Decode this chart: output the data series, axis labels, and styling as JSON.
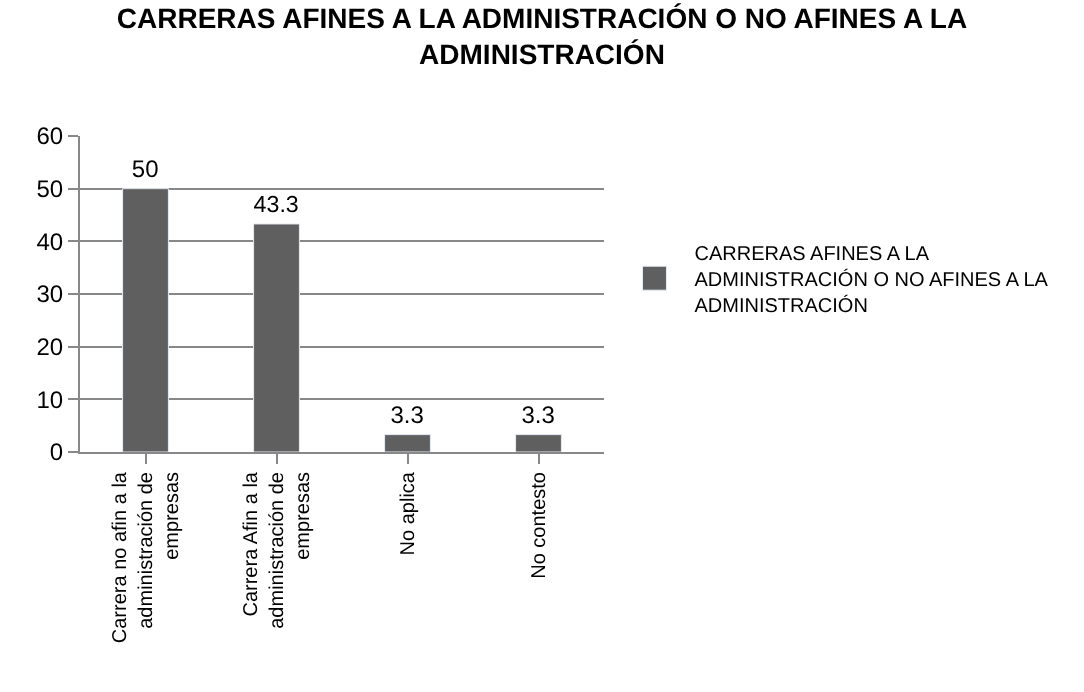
{
  "chart_data": {
    "type": "bar",
    "title": "CARRERAS AFINES A LA ADMINISTRACIÓN O NO AFINES A LA\nADMINISTRACIÓN",
    "categories": [
      "Carrera no afin a la\nadministración de\nempresas",
      "Carrera Afin a la\nadministración de\nempresas",
      "No aplica",
      "No contesto"
    ],
    "series": [
      {
        "name": "CARRERAS AFINES A LA\nADMINISTRACIÓN O NO AFINES A LA\nADMINISTRACIÓN",
        "color": "#5f5f5f",
        "values": [
          50,
          43.3,
          3.3,
          3.3
        ]
      }
    ],
    "ylim": [
      0,
      60
    ],
    "yticks": [
      0,
      10,
      20,
      30,
      40,
      50,
      60
    ],
    "grid": "y",
    "legend": "right",
    "data_labels": true
  }
}
